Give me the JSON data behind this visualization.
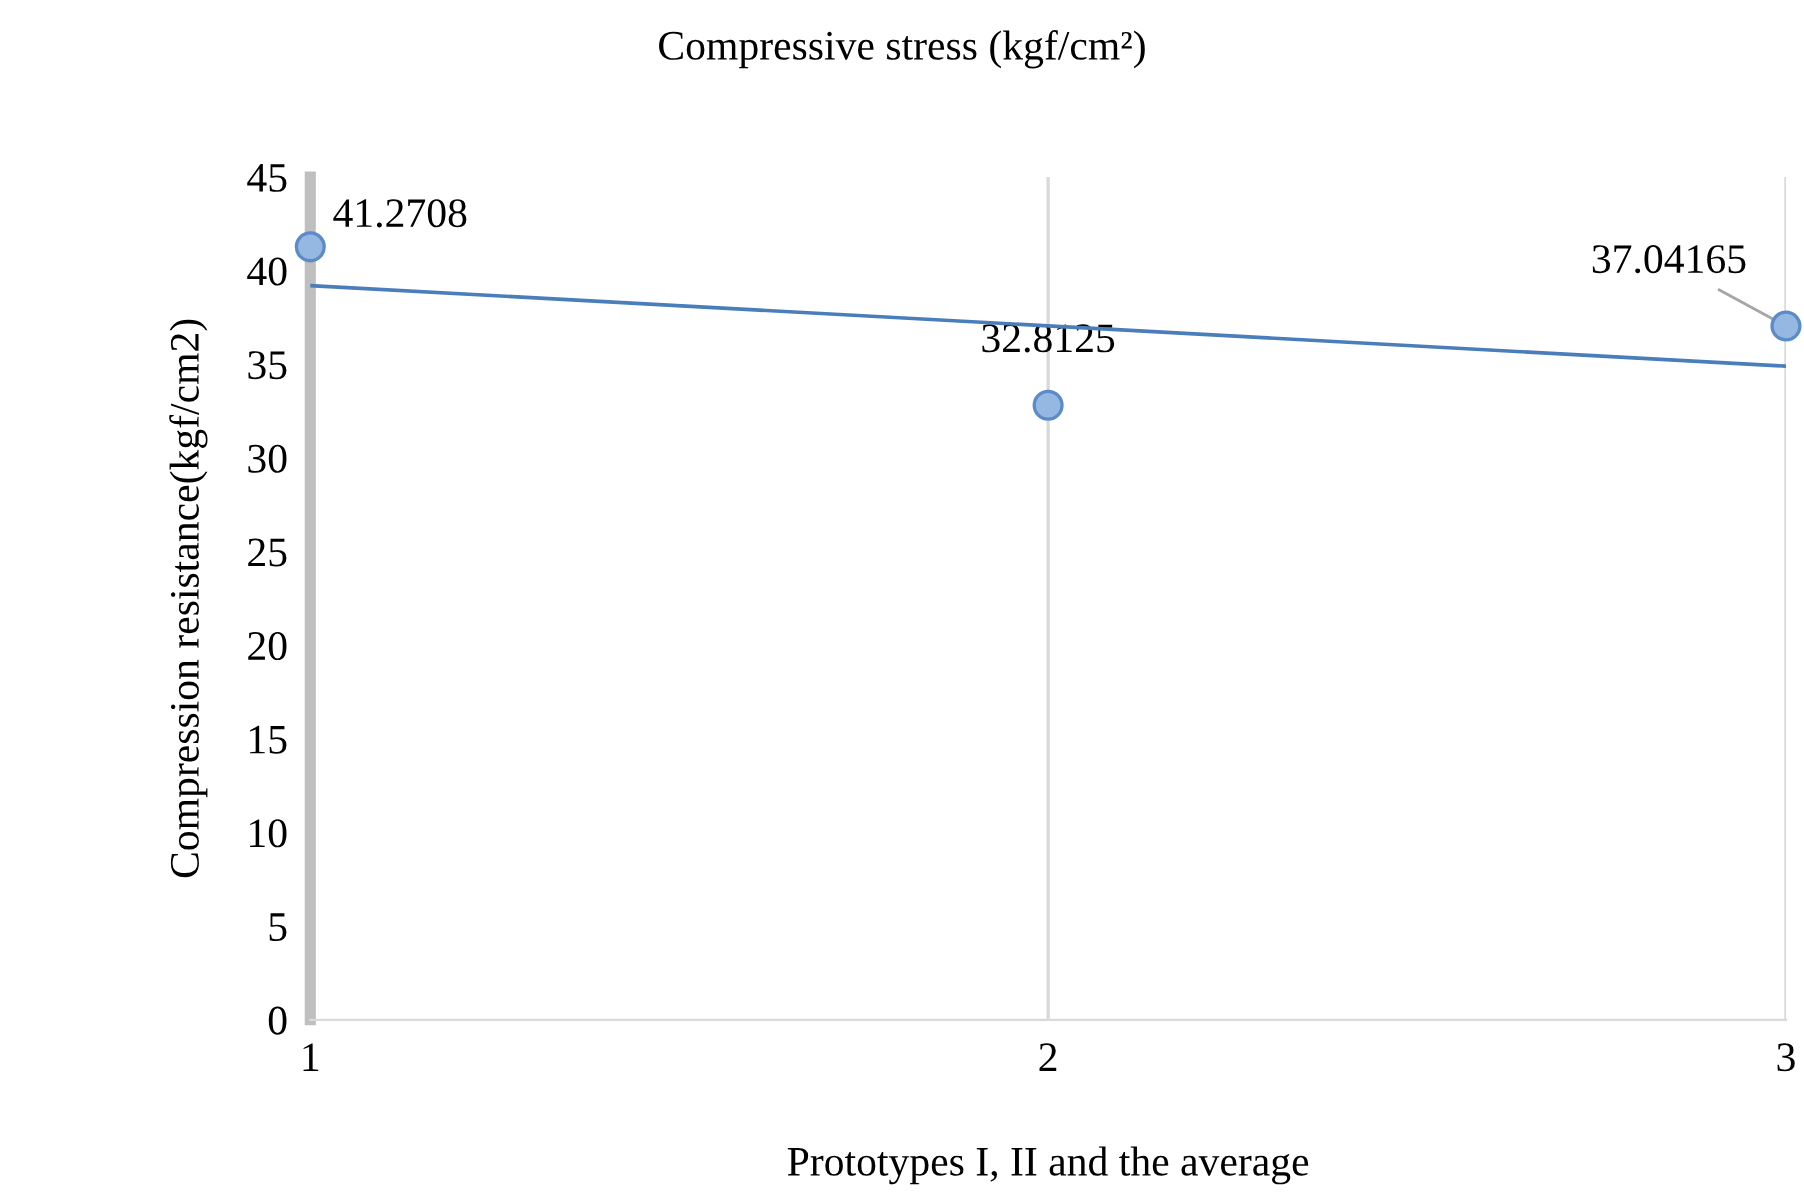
{
  "chart_data": {
    "type": "scatter",
    "title": "Compressive stress (kgf/cm²)",
    "xlabel": "Prototypes I, II and the average",
    "ylabel": "Compression resistance(kgf/cm2)",
    "xlim": [
      1,
      3
    ],
    "xticks": [
      1,
      2,
      3
    ],
    "ylim": [
      0,
      45
    ],
    "yticks": [
      0,
      5,
      10,
      15,
      20,
      25,
      30,
      35,
      40,
      45
    ],
    "grid": "x",
    "legend": false,
    "series": [
      {
        "color": "#95b8e3",
        "x": [
          1,
          2,
          3
        ],
        "values": [
          41.2708,
          32.8125,
          37.04165
        ],
        "marker": "circle",
        "value_labels": [
          "41.2708",
          "32.8125",
          "37.04165"
        ]
      },
      {
        "type": "line",
        "color": "#4a7ebb",
        "x": [
          1,
          3
        ],
        "values": [
          39.2,
          34.9
        ],
        "line_style": "solid"
      }
    ]
  }
}
